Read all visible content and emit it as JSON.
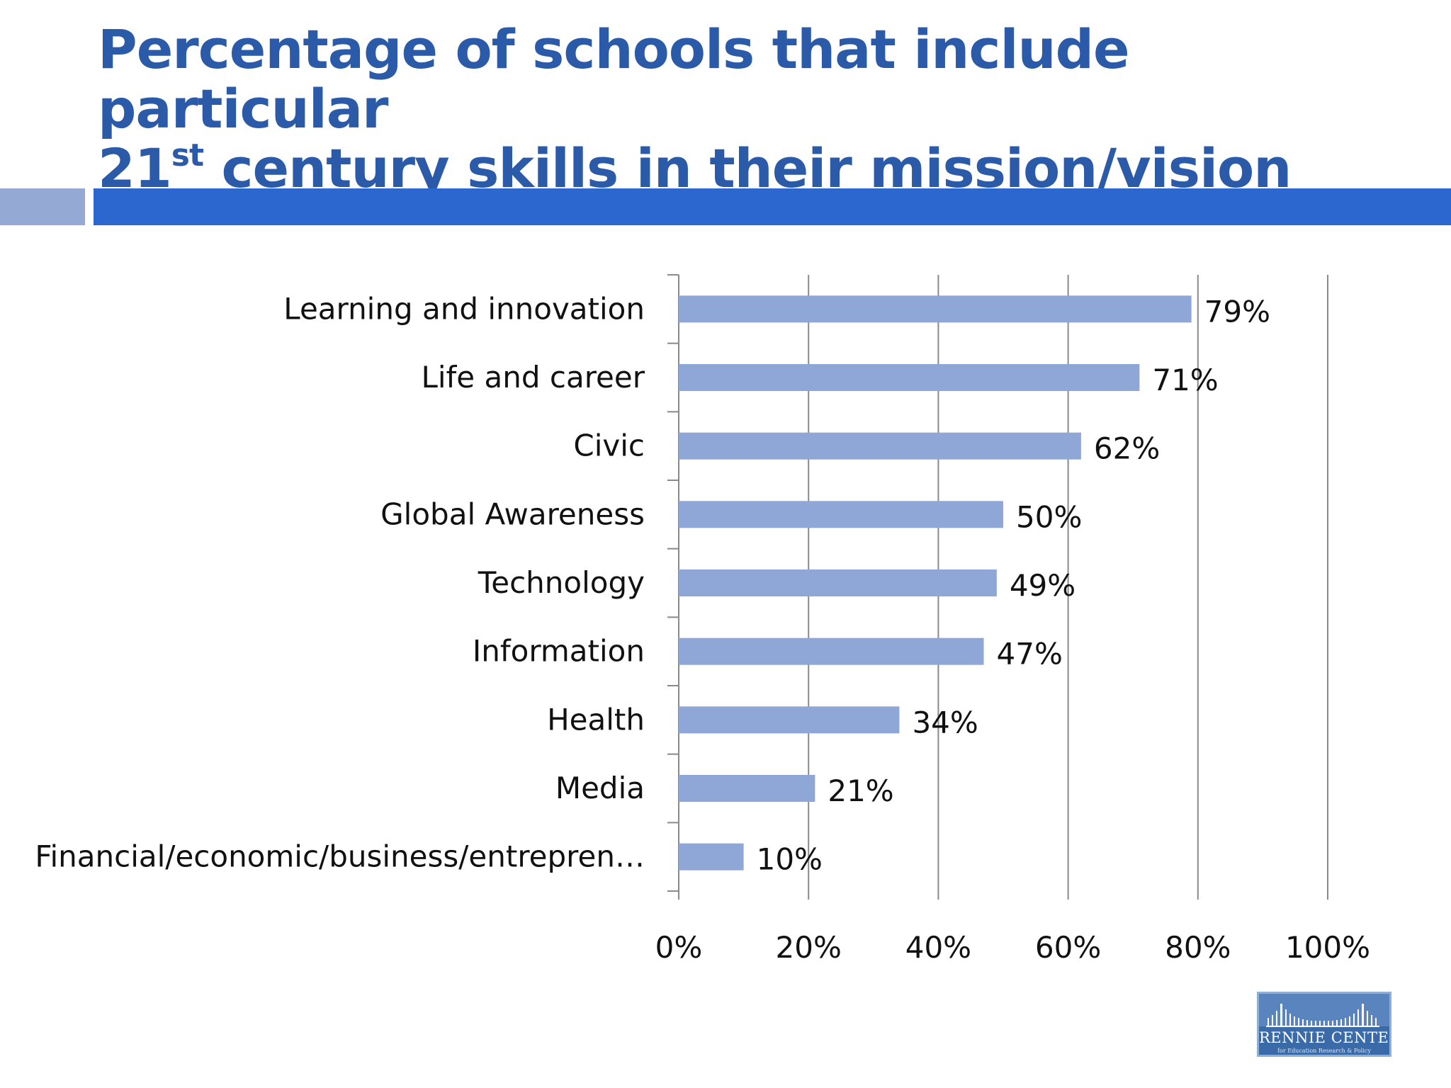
{
  "title": {
    "line1": "Percentage of schools that include particular",
    "line2_lead": "21",
    "line2_sup": "st",
    "line2_rest": " century skills in their mission/vision"
  },
  "colors": {
    "title": "#2a5aa8",
    "band_main": "#2b67cf",
    "band_left": "#94a9d4",
    "bar": "#8ea7d6",
    "grid": "#8a8a8a"
  },
  "chart_data": {
    "type": "bar",
    "orientation": "horizontal",
    "categories": [
      "Learning and innovation",
      "Life and career",
      "Civic",
      "Global Awareness",
      "Technology",
      "Information",
      "Health",
      "Media",
      "Financial/economic/business/entrepren…"
    ],
    "values": [
      79,
      71,
      62,
      50,
      49,
      47,
      34,
      21,
      10
    ],
    "value_labels": [
      "79%",
      "71%",
      "62%",
      "50%",
      "49%",
      "47%",
      "34%",
      "21%",
      "10%"
    ],
    "xlim": [
      0,
      100
    ],
    "xticks": [
      "0%",
      "20%",
      "40%",
      "60%",
      "80%",
      "100%"
    ],
    "grid": true,
    "xlabel": "",
    "ylabel": ""
  },
  "logo": {
    "name": "RENNIE CENTER",
    "tagline": "for Education Research & Policy"
  }
}
